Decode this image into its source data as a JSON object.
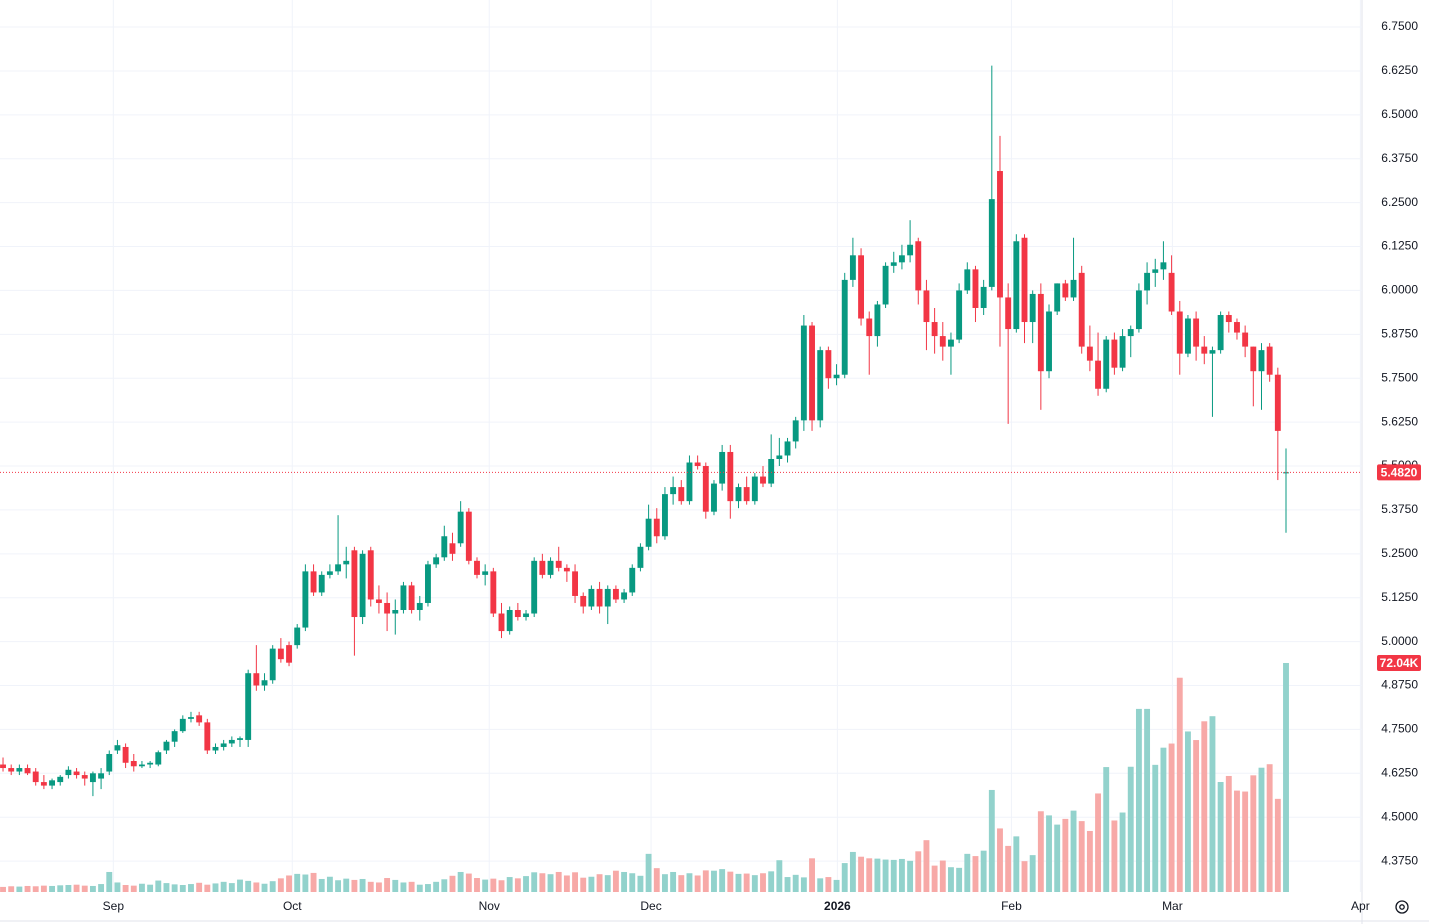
{
  "chart_data": {
    "type": "candlestick",
    "ohlc": [
      [
        4.65,
        4.67,
        4.63,
        4.64
      ],
      [
        4.64,
        4.65,
        4.62,
        4.63
      ],
      [
        4.63,
        4.65,
        4.62,
        4.64
      ],
      [
        4.64,
        4.65,
        4.62,
        4.625
      ],
      [
        4.63,
        4.64,
        4.59,
        4.6
      ],
      [
        4.6,
        4.62,
        4.58,
        4.59
      ],
      [
        4.59,
        4.61,
        4.58,
        4.605
      ],
      [
        4.6,
        4.62,
        4.59,
        4.615
      ],
      [
        4.62,
        4.645,
        4.61,
        4.635
      ],
      [
        4.63,
        4.64,
        4.61,
        4.62
      ],
      [
        4.62,
        4.63,
        4.59,
        4.61
      ],
      [
        4.6,
        4.63,
        4.56,
        4.625
      ],
      [
        4.61,
        4.64,
        4.58,
        4.625
      ],
      [
        4.63,
        4.69,
        4.62,
        4.68
      ],
      [
        4.69,
        4.72,
        4.68,
        4.705
      ],
      [
        4.7,
        4.71,
        4.64,
        4.655
      ],
      [
        4.66,
        4.68,
        4.63,
        4.645
      ],
      [
        4.645,
        4.66,
        4.64,
        4.65
      ],
      [
        4.65,
        4.66,
        4.64,
        4.655
      ],
      [
        4.65,
        4.69,
        4.645,
        4.685
      ],
      [
        4.69,
        4.72,
        4.68,
        4.715
      ],
      [
        4.715,
        4.75,
        4.7,
        4.745
      ],
      [
        4.745,
        4.79,
        4.74,
        4.78
      ],
      [
        4.78,
        4.8,
        4.77,
        4.785
      ],
      [
        4.79,
        4.8,
        4.76,
        4.77
      ],
      [
        4.77,
        4.78,
        4.68,
        4.69
      ],
      [
        4.69,
        4.71,
        4.68,
        4.7
      ],
      [
        4.7,
        4.72,
        4.69,
        4.71
      ],
      [
        4.71,
        4.73,
        4.7,
        4.72
      ],
      [
        4.72,
        4.73,
        4.7,
        4.725
      ],
      [
        4.72,
        4.92,
        4.7,
        4.91
      ],
      [
        4.91,
        4.99,
        4.86,
        4.875
      ],
      [
        4.875,
        4.91,
        4.86,
        4.89
      ],
      [
        4.89,
        4.99,
        4.88,
        4.98
      ],
      [
        4.98,
        5.01,
        4.94,
        4.95
      ],
      [
        4.99,
        5.0,
        4.93,
        4.94
      ],
      [
        4.99,
        5.05,
        4.98,
        5.04
      ],
      [
        5.04,
        5.22,
        5.03,
        5.2
      ],
      [
        5.2,
        5.22,
        5.13,
        5.14
      ],
      [
        5.14,
        5.2,
        5.13,
        5.19
      ],
      [
        5.19,
        5.22,
        5.18,
        5.2
      ],
      [
        5.2,
        5.36,
        5.19,
        5.22
      ],
      [
        5.22,
        5.27,
        5.18,
        5.23
      ],
      [
        5.26,
        5.27,
        4.96,
        5.07
      ],
      [
        5.07,
        5.26,
        5.05,
        5.25
      ],
      [
        5.26,
        5.27,
        5.1,
        5.12
      ],
      [
        5.12,
        5.16,
        5.08,
        5.11
      ],
      [
        5.11,
        5.14,
        5.03,
        5.08
      ],
      [
        5.08,
        5.12,
        5.02,
        5.09
      ],
      [
        5.09,
        5.17,
        5.08,
        5.16
      ],
      [
        5.16,
        5.17,
        5.08,
        5.09
      ],
      [
        5.09,
        5.13,
        5.06,
        5.11
      ],
      [
        5.11,
        5.23,
        5.1,
        5.22
      ],
      [
        5.22,
        5.25,
        5.21,
        5.24
      ],
      [
        5.24,
        5.33,
        5.23,
        5.3
      ],
      [
        5.28,
        5.31,
        5.23,
        5.25
      ],
      [
        5.28,
        5.4,
        5.27,
        5.37
      ],
      [
        5.37,
        5.38,
        5.22,
        5.23
      ],
      [
        5.23,
        5.24,
        5.18,
        5.19
      ],
      [
        5.19,
        5.22,
        5.16,
        5.2
      ],
      [
        5.2,
        5.21,
        5.07,
        5.08
      ],
      [
        5.08,
        5.11,
        5.01,
        5.03
      ],
      [
        5.03,
        5.1,
        5.02,
        5.09
      ],
      [
        5.09,
        5.11,
        5.06,
        5.07
      ],
      [
        5.07,
        5.09,
        5.06,
        5.08
      ],
      [
        5.08,
        5.24,
        5.07,
        5.23
      ],
      [
        5.23,
        5.25,
        5.18,
        5.19
      ],
      [
        5.19,
        5.24,
        5.18,
        5.23
      ],
      [
        5.23,
        5.27,
        5.2,
        5.21
      ],
      [
        5.21,
        5.22,
        5.17,
        5.2
      ],
      [
        5.2,
        5.22,
        5.11,
        5.13
      ],
      [
        5.13,
        5.14,
        5.08,
        5.1
      ],
      [
        5.1,
        5.16,
        5.09,
        5.15
      ],
      [
        5.15,
        5.17,
        5.08,
        5.1
      ],
      [
        5.1,
        5.16,
        5.05,
        5.15
      ],
      [
        5.15,
        5.16,
        5.11,
        5.12
      ],
      [
        5.12,
        5.15,
        5.11,
        5.14
      ],
      [
        5.14,
        5.22,
        5.13,
        5.21
      ],
      [
        5.21,
        5.28,
        5.2,
        5.27
      ],
      [
        5.27,
        5.39,
        5.26,
        5.35
      ],
      [
        5.35,
        5.38,
        5.28,
        5.3
      ],
      [
        5.3,
        5.44,
        5.29,
        5.42
      ],
      [
        5.42,
        5.47,
        5.39,
        5.44
      ],
      [
        5.44,
        5.46,
        5.39,
        5.4
      ],
      [
        5.4,
        5.53,
        5.39,
        5.51
      ],
      [
        5.51,
        5.53,
        5.49,
        5.5
      ],
      [
        5.5,
        5.51,
        5.35,
        5.37
      ],
      [
        5.37,
        5.46,
        5.36,
        5.45
      ],
      [
        5.45,
        5.56,
        5.43,
        5.54
      ],
      [
        5.54,
        5.56,
        5.35,
        5.4
      ],
      [
        5.4,
        5.45,
        5.38,
        5.44
      ],
      [
        5.44,
        5.47,
        5.39,
        5.4
      ],
      [
        5.4,
        5.48,
        5.39,
        5.47
      ],
      [
        5.47,
        5.5,
        5.44,
        5.45
      ],
      [
        5.45,
        5.59,
        5.44,
        5.52
      ],
      [
        5.52,
        5.58,
        5.5,
        5.53
      ],
      [
        5.53,
        5.58,
        5.51,
        5.57
      ],
      [
        5.57,
        5.64,
        5.55,
        5.63
      ],
      [
        5.63,
        5.93,
        5.6,
        5.9
      ],
      [
        5.9,
        5.91,
        5.6,
        5.63
      ],
      [
        5.63,
        5.84,
        5.61,
        5.83
      ],
      [
        5.83,
        5.84,
        5.72,
        5.75
      ],
      [
        5.75,
        5.79,
        5.73,
        5.76
      ],
      [
        5.76,
        6.05,
        5.75,
        6.03
      ],
      [
        6.03,
        6.15,
        6.01,
        6.1
      ],
      [
        6.1,
        6.12,
        5.9,
        5.92
      ],
      [
        5.92,
        5.94,
        5.76,
        5.87
      ],
      [
        5.87,
        5.97,
        5.84,
        5.96
      ],
      [
        5.96,
        6.08,
        5.95,
        6.07
      ],
      [
        6.07,
        6.11,
        6.05,
        6.08
      ],
      [
        6.08,
        6.13,
        6.06,
        6.1
      ],
      [
        6.1,
        6.2,
        6.08,
        6.13
      ],
      [
        6.14,
        6.15,
        5.96,
        6.0
      ],
      [
        6.0,
        6.03,
        5.83,
        5.91
      ],
      [
        5.91,
        5.95,
        5.82,
        5.87
      ],
      [
        5.87,
        5.91,
        5.8,
        5.84
      ],
      [
        5.84,
        5.88,
        5.76,
        5.86
      ],
      [
        5.86,
        6.02,
        5.85,
        6.0
      ],
      [
        6.0,
        6.08,
        5.99,
        6.06
      ],
      [
        6.06,
        6.07,
        5.91,
        5.95
      ],
      [
        5.95,
        6.03,
        5.93,
        6.01
      ],
      [
        6.01,
        6.64,
        6.0,
        6.26
      ],
      [
        6.34,
        6.44,
        5.84,
        5.98
      ],
      [
        5.98,
        6.02,
        5.62,
        5.89
      ],
      [
        5.89,
        6.16,
        5.88,
        6.14
      ],
      [
        6.15,
        6.16,
        5.85,
        5.91
      ],
      [
        5.91,
        6.0,
        5.85,
        5.99
      ],
      [
        5.99,
        6.02,
        5.66,
        5.77
      ],
      [
        5.77,
        5.96,
        5.75,
        5.94
      ],
      [
        5.94,
        6.02,
        5.93,
        6.02
      ],
      [
        6.02,
        6.03,
        5.97,
        5.98
      ],
      [
        5.98,
        6.15,
        5.97,
        6.03
      ],
      [
        6.05,
        6.07,
        5.82,
        5.84
      ],
      [
        5.84,
        5.9,
        5.77,
        5.8
      ],
      [
        5.8,
        5.88,
        5.7,
        5.72
      ],
      [
        5.72,
        5.87,
        5.71,
        5.86
      ],
      [
        5.86,
        5.88,
        5.76,
        5.78
      ],
      [
        5.78,
        5.89,
        5.77,
        5.87
      ],
      [
        5.87,
        5.9,
        5.81,
        5.89
      ],
      [
        5.89,
        6.02,
        5.88,
        6.0
      ],
      [
        6.0,
        6.08,
        5.96,
        6.05
      ],
      [
        6.05,
        6.09,
        6.01,
        6.06
      ],
      [
        6.06,
        6.14,
        6.03,
        6.08
      ],
      [
        6.05,
        6.1,
        5.93,
        5.94
      ],
      [
        5.94,
        5.97,
        5.76,
        5.82
      ],
      [
        5.82,
        5.93,
        5.81,
        5.92
      ],
      [
        5.92,
        5.94,
        5.8,
        5.84
      ],
      [
        5.84,
        5.87,
        5.79,
        5.82
      ],
      [
        5.82,
        5.84,
        5.64,
        5.83
      ],
      [
        5.83,
        5.94,
        5.82,
        5.93
      ],
      [
        5.93,
        5.94,
        5.88,
        5.91
      ],
      [
        5.91,
        5.92,
        5.86,
        5.88
      ],
      [
        5.88,
        5.9,
        5.81,
        5.84
      ],
      [
        5.84,
        5.84,
        5.67,
        5.77
      ],
      [
        5.77,
        5.85,
        5.66,
        5.83
      ],
      [
        5.84,
        5.85,
        5.74,
        5.76
      ],
      [
        5.76,
        5.78,
        5.46,
        5.6
      ],
      [
        5.48,
        5.55,
        5.31,
        5.482
      ]
    ],
    "volume": [
      1600,
      1800,
      1700,
      1900,
      1800,
      2000,
      1900,
      2100,
      2200,
      2300,
      2000,
      1900,
      2500,
      6300,
      3000,
      2200,
      2000,
      2600,
      2300,
      3600,
      2800,
      2400,
      2200,
      2500,
      2900,
      2300,
      2700,
      3200,
      2800,
      3900,
      3500,
      3000,
      2600,
      3400,
      4300,
      5200,
      5700,
      5500,
      6000,
      4100,
      4800,
      3700,
      4200,
      3800,
      4100,
      3200,
      3000,
      4400,
      3800,
      3000,
      3200,
      2300,
      2500,
      3200,
      4000,
      5100,
      6300,
      5800,
      4400,
      3900,
      4200,
      3700,
      4700,
      4300,
      5000,
      6200,
      5900,
      5600,
      6300,
      5200,
      6200,
      4500,
      4800,
      5600,
      5300,
      6700,
      6300,
      5900,
      5100,
      12000,
      7500,
      5600,
      6300,
      5300,
      5900,
      5200,
      6800,
      6700,
      7200,
      6400,
      5700,
      5800,
      5300,
      5900,
      6500,
      10000,
      4700,
      5400,
      4600,
      10600,
      4300,
      4700,
      3800,
      9100,
      12600,
      11100,
      10600,
      10500,
      10200,
      10100,
      10400,
      9800,
      12800,
      16300,
      8300,
      9900,
      7800,
      7600,
      12000,
      11300,
      13000,
      32100,
      20000,
      14500,
      17500,
      9700,
      11600,
      25400,
      24100,
      21200,
      23000,
      25600,
      22300,
      19200,
      31000,
      39300,
      22500,
      25000,
      39400,
      57600,
      57600,
      40000,
      45400,
      46700,
      67400,
      50500,
      47800,
      53700,
      55300,
      34600,
      36500,
      31900,
      31600,
      36700,
      39100,
      40200,
      29300,
      72040
    ],
    "xlim": [
      -0.37,
      166.3
    ],
    "xticks": [
      {
        "value": 13.5,
        "label": "Sep"
      },
      {
        "value": 35.4,
        "label": "Oct"
      },
      {
        "value": 59.5,
        "label": "Nov"
      },
      {
        "value": 79.3,
        "label": "Dec"
      },
      {
        "value": 102.1,
        "label": "2026"
      },
      {
        "value": 123.4,
        "label": "Feb"
      },
      {
        "value": 143.1,
        "label": "Mar"
      },
      {
        "value": 166.1,
        "label": "Apr"
      }
    ],
    "ylim": [
      4.287,
      6.827
    ],
    "yticks": [
      {
        "value": 4.375,
        "label": "4.3750"
      },
      {
        "value": 4.5,
        "label": "4.5000"
      },
      {
        "value": 4.625,
        "label": "4.6250"
      },
      {
        "value": 4.75,
        "label": "4.7500"
      },
      {
        "value": 4.875,
        "label": "4.8750"
      },
      {
        "value": 5,
        "label": "5.0000"
      },
      {
        "value": 5.125,
        "label": "5.1250"
      },
      {
        "value": 5.25,
        "label": "5.2500"
      },
      {
        "value": 5.375,
        "label": "5.3750"
      },
      {
        "value": 5.5,
        "label": "5.5000"
      },
      {
        "value": 5.625,
        "label": "5.6250"
      },
      {
        "value": 5.75,
        "label": "5.7500"
      },
      {
        "value": 5.875,
        "label": "5.8750"
      },
      {
        "value": 6,
        "label": "6.0000"
      },
      {
        "value": 6.125,
        "label": "6.1250"
      },
      {
        "value": 6.25,
        "label": "6.2500"
      },
      {
        "value": 6.375,
        "label": "6.3750"
      },
      {
        "value": 6.5,
        "label": "6.5000"
      },
      {
        "value": 6.625,
        "label": "6.6250"
      },
      {
        "value": 6.75,
        "label": "6.7500"
      }
    ],
    "y2lim": [
      0,
      280600
    ],
    "grid": true,
    "up_color": "#089981",
    "down_color": "#f23645",
    "volume_up_color": "#92d2cc",
    "volume_down_color": "#f7a9a7",
    "last_price": {
      "value": 5.482,
      "label": "5.4820"
    },
    "last_volume": {
      "value": 72040,
      "label": "72.04K"
    }
  }
}
